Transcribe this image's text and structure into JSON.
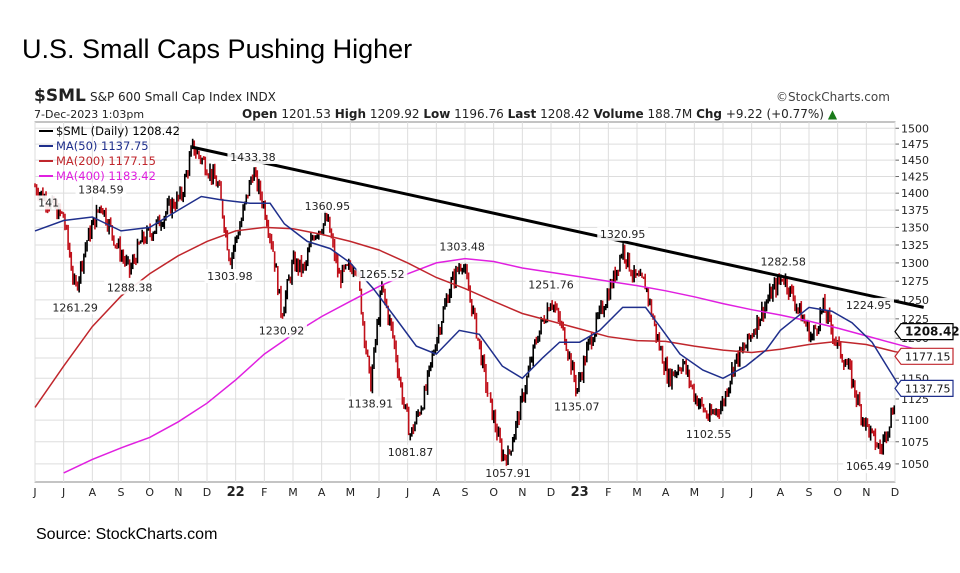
{
  "title": "U.S. Small Caps Pushing Higher",
  "source": "Source: StockCharts.com",
  "header": {
    "symbol": "$SML",
    "index_name": "S&P 600 Small Cap Index",
    "exchange": "INDX",
    "brand": "©StockCharts.com",
    "date": "7-Dec-2023 1:03pm",
    "open_label": "Open",
    "open": "1201.53",
    "high_label": "High",
    "high": "1209.92",
    "low_label": "Low",
    "low": "1196.76",
    "last_label": "Last",
    "last": "1208.42",
    "volume_label": "Volume",
    "volume": "188.7M",
    "chg_label": "Chg",
    "chg": "+9.22 (+0.77%)"
  },
  "colors": {
    "price_up": "#000000",
    "price_down": "#c0101a",
    "ma50": "#1f2f8c",
    "ma200": "#c0262c",
    "ma400": "#e020e0",
    "trendline": "#000000",
    "grid": "#dddddd",
    "current_label_bg": "#ffffff"
  },
  "chart_data": {
    "type": "line",
    "ylim": [
      1030,
      1510
    ],
    "yscale": "log",
    "grid": true,
    "legend_position": "top-left",
    "x_ticks": [
      "J",
      "J",
      "A",
      "S",
      "O",
      "N",
      "D",
      "22",
      "F",
      "M",
      "A",
      "M",
      "J",
      "J",
      "A",
      "S",
      "O",
      "N",
      "D",
      "23",
      "F",
      "M",
      "A",
      "M",
      "J",
      "J",
      "A",
      "S",
      "O",
      "N",
      "D"
    ],
    "y_ticks": [
      1050,
      1075,
      1100,
      1125,
      1150,
      1175,
      1200,
      1225,
      1250,
      1275,
      1300,
      1325,
      1350,
      1375,
      1400,
      1425,
      1450,
      1475,
      1500
    ],
    "legend": [
      {
        "label": "$SML (Daily) 1208.42",
        "key": "price"
      },
      {
        "label": "MA(50) 1137.75",
        "key": "ma50"
      },
      {
        "label": "MA(200) 1177.15",
        "key": "ma200"
      },
      {
        "label": "MA(400) 1183.42",
        "key": "ma400"
      }
    ],
    "price_series": [
      [
        0,
        1410
      ],
      [
        0.5,
        1385
      ],
      [
        1,
        1365
      ],
      [
        1.4,
        1261.29
      ],
      [
        1.8,
        1330
      ],
      [
        2.3,
        1384.59
      ],
      [
        2.8,
        1330
      ],
      [
        3.3,
        1288.38
      ],
      [
        3.7,
        1330
      ],
      [
        4.2,
        1350
      ],
      [
        4.7,
        1380
      ],
      [
        5.1,
        1395
      ],
      [
        5.5,
        1470
      ],
      [
        6.0,
        1440
      ],
      [
        6.4,
        1410
      ],
      [
        6.8,
        1303.98
      ],
      [
        7.2,
        1360
      ],
      [
        7.6,
        1433.38
      ],
      [
        8.0,
        1380
      ],
      [
        8.3,
        1320
      ],
      [
        8.6,
        1230.92
      ],
      [
        9.0,
        1300
      ],
      [
        9.4,
        1290
      ],
      [
        9.7,
        1340
      ],
      [
        10.2,
        1360.95
      ],
      [
        10.6,
        1280
      ],
      [
        11.2,
        1300
      ],
      [
        11.7,
        1138.91
      ],
      [
        12.1,
        1265.52
      ],
      [
        12.5,
        1200
      ],
      [
        12.8,
        1130
      ],
      [
        13.1,
        1081.87
      ],
      [
        13.6,
        1130
      ],
      [
        14.0,
        1200
      ],
      [
        14.5,
        1270
      ],
      [
        14.9,
        1303.48
      ],
      [
        15.3,
        1230
      ],
      [
        15.8,
        1130
      ],
      [
        16.3,
        1060
      ],
      [
        16.5,
        1057.91
      ],
      [
        16.9,
        1110
      ],
      [
        17.5,
        1200
      ],
      [
        18.0,
        1251.76
      ],
      [
        18.5,
        1200
      ],
      [
        18.9,
        1135.07
      ],
      [
        19.3,
        1190
      ],
      [
        19.8,
        1240
      ],
      [
        20.2,
        1280
      ],
      [
        20.5,
        1320.95
      ],
      [
        20.9,
        1280
      ],
      [
        21.3,
        1270
      ],
      [
        21.7,
        1200
      ],
      [
        22.1,
        1150
      ],
      [
        22.6,
        1170
      ],
      [
        23.0,
        1130
      ],
      [
        23.5,
        1102.55
      ],
      [
        24.0,
        1120
      ],
      [
        24.4,
        1170
      ],
      [
        24.8,
        1190
      ],
      [
        25.3,
        1230
      ],
      [
        25.7,
        1260
      ],
      [
        26.1,
        1282.58
      ],
      [
        26.6,
        1240
      ],
      [
        27.1,
        1200
      ],
      [
        27.5,
        1240
      ],
      [
        28.0,
        1190
      ],
      [
        28.4,
        1160
      ],
      [
        28.8,
        1110
      ],
      [
        29.2,
        1080
      ],
      [
        29.5,
        1065.49
      ],
      [
        29.9,
        1110
      ],
      [
        30.3,
        1180
      ],
      [
        30.6,
        1200
      ],
      [
        30.9,
        1224.95
      ],
      [
        31.0,
        1208.42
      ]
    ],
    "ma50": [
      [
        0,
        1345
      ],
      [
        1,
        1360
      ],
      [
        2,
        1365
      ],
      [
        3,
        1345
      ],
      [
        4,
        1350
      ],
      [
        5,
        1375
      ],
      [
        5.8,
        1395
      ],
      [
        6.5,
        1390
      ],
      [
        7.5,
        1385
      ],
      [
        8.2,
        1385
      ],
      [
        8.7,
        1355
      ],
      [
        9.5,
        1330
      ],
      [
        10.3,
        1320
      ],
      [
        11,
        1300
      ],
      [
        11.8,
        1265
      ],
      [
        12.5,
        1230
      ],
      [
        13.3,
        1190
      ],
      [
        14,
        1180
      ],
      [
        14.8,
        1210
      ],
      [
        15.5,
        1205
      ],
      [
        16.3,
        1165
      ],
      [
        17,
        1150
      ],
      [
        17.7,
        1175
      ],
      [
        18.3,
        1195
      ],
      [
        19,
        1195
      ],
      [
        19.7,
        1210
      ],
      [
        20.5,
        1240
      ],
      [
        21.3,
        1240
      ],
      [
        21.8,
        1215
      ],
      [
        22.5,
        1180
      ],
      [
        23.3,
        1160
      ],
      [
        24,
        1150
      ],
      [
        24.8,
        1165
      ],
      [
        25.5,
        1185
      ],
      [
        26,
        1210
      ],
      [
        26.5,
        1225
      ],
      [
        27,
        1240
      ],
      [
        27.8,
        1235
      ],
      [
        28.5,
        1220
      ],
      [
        29.2,
        1195
      ],
      [
        29.8,
        1160
      ],
      [
        30.3,
        1132
      ],
      [
        31,
        1137.75
      ]
    ],
    "ma200": [
      [
        0,
        1115
      ],
      [
        1,
        1165
      ],
      [
        2,
        1215
      ],
      [
        3,
        1255
      ],
      [
        4,
        1285
      ],
      [
        5,
        1310
      ],
      [
        6,
        1330
      ],
      [
        7,
        1345
      ],
      [
        8,
        1350
      ],
      [
        9,
        1348
      ],
      [
        10,
        1340
      ],
      [
        11,
        1330
      ],
      [
        12,
        1318
      ],
      [
        13,
        1300
      ],
      [
        14,
        1280
      ],
      [
        15,
        1265
      ],
      [
        16,
        1248
      ],
      [
        17,
        1232
      ],
      [
        18,
        1222
      ],
      [
        19,
        1212
      ],
      [
        20,
        1202
      ],
      [
        21,
        1197
      ],
      [
        22,
        1196
      ],
      [
        23,
        1190
      ],
      [
        24,
        1185
      ],
      [
        25,
        1182
      ],
      [
        26,
        1186
      ],
      [
        27,
        1192
      ],
      [
        28,
        1196
      ],
      [
        29,
        1192
      ],
      [
        30,
        1183
      ],
      [
        31,
        1177.15
      ]
    ],
    "ma400": [
      [
        1,
        1040
      ],
      [
        2,
        1055
      ],
      [
        3,
        1068
      ],
      [
        4,
        1080
      ],
      [
        5,
        1098
      ],
      [
        6,
        1120
      ],
      [
        7,
        1148
      ],
      [
        8,
        1180
      ],
      [
        9,
        1205
      ],
      [
        10,
        1228
      ],
      [
        11,
        1248
      ],
      [
        12,
        1268
      ],
      [
        13,
        1285
      ],
      [
        14,
        1300
      ],
      [
        15,
        1306
      ],
      [
        16,
        1302
      ],
      [
        17,
        1293
      ],
      [
        18,
        1287
      ],
      [
        19,
        1281
      ],
      [
        20,
        1275
      ],
      [
        21,
        1269
      ],
      [
        22,
        1262
      ],
      [
        23,
        1254
      ],
      [
        24,
        1245
      ],
      [
        25,
        1237
      ],
      [
        26,
        1230
      ],
      [
        27,
        1222
      ],
      [
        28,
        1213
      ],
      [
        29,
        1203
      ],
      [
        30,
        1193
      ],
      [
        31,
        1183.42
      ]
    ],
    "trendline": [
      [
        5.5,
        1470
      ],
      [
        31,
        1240
      ]
    ],
    "annotations": [
      {
        "x": 0,
        "y": 1410,
        "label": "141"
      },
      {
        "x": 1.4,
        "y": 1261.29,
        "label": "1261.29"
      },
      {
        "x": 2.3,
        "y": 1384.59,
        "label": "1384.59"
      },
      {
        "x": 3.3,
        "y": 1288.38,
        "label": "1288.38"
      },
      {
        "x": 6.8,
        "y": 1303.98,
        "label": "1303.98"
      },
      {
        "x": 7.6,
        "y": 1433.38,
        "label": "1433.38"
      },
      {
        "x": 8.6,
        "y": 1230.92,
        "label": "1230.92"
      },
      {
        "x": 10.2,
        "y": 1360.95,
        "label": "1360.95"
      },
      {
        "x": 11.7,
        "y": 1138.91,
        "label": "1138.91"
      },
      {
        "x": 12.1,
        "y": 1265.52,
        "label": "1265.52"
      },
      {
        "x": 13.1,
        "y": 1081.87,
        "label": "1081.87"
      },
      {
        "x": 14.9,
        "y": 1303.48,
        "label": "1303.48"
      },
      {
        "x": 16.5,
        "y": 1057.91,
        "label": "1057.91"
      },
      {
        "x": 18.0,
        "y": 1251.76,
        "label": "1251.76"
      },
      {
        "x": 18.9,
        "y": 1135.07,
        "label": "1135.07"
      },
      {
        "x": 20.5,
        "y": 1320.95,
        "label": "1320.95"
      },
      {
        "x": 23.5,
        "y": 1102.55,
        "label": "1102.55"
      },
      {
        "x": 26.1,
        "y": 1282.58,
        "label": "1282.58"
      },
      {
        "x": 29.5,
        "y": 1065.49,
        "label": "1065.49"
      },
      {
        "x": 30.9,
        "y": 1224.95,
        "label": "1224.95"
      }
    ],
    "right_labels": [
      {
        "value": 1208.42,
        "label": "1208.42",
        "key": "price"
      },
      {
        "value": 1177.15,
        "label": "1177.15",
        "key": "ma200"
      },
      {
        "value": 1137.75,
        "label": "1137.75",
        "key": "ma50"
      }
    ]
  }
}
